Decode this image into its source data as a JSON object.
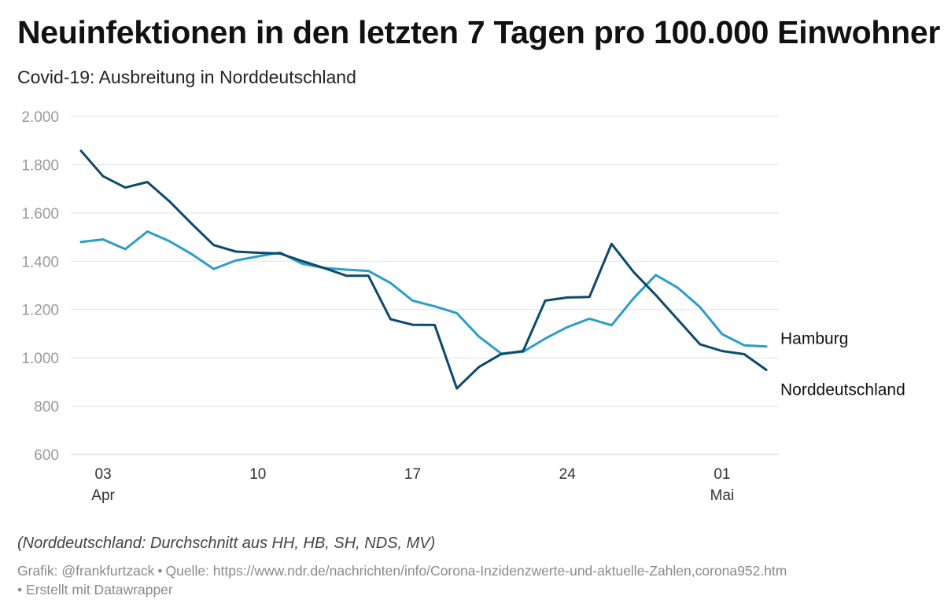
{
  "header": {
    "title": "Neuinfektionen in den letzten 7 Tagen pro 100.000 Einwohner",
    "subtitle": "Covid-19: Ausbreitung in Norddeutschland"
  },
  "footer": {
    "note": "(Norddeutschland: Durchschnitt aus HH, HB, SH, NDS, MV)",
    "credit": "Grafik: @frankfurtzack",
    "bullet": "•",
    "source": "Quelle: https://www.ndr.de/nachrichten/info/Corona-Inzidenzwerte-und-aktuelle-Zahlen,corona952.htm",
    "tool": "Erstellt mit Datawrapper"
  },
  "colors": {
    "hamburg": "#2b9ec9",
    "norddeutschland": "#0b4a6b",
    "grid": "#e2e2e2",
    "tick_label": "#9a9a9a"
  },
  "chart_data": {
    "type": "line",
    "x": [
      "2021-04-02",
      "2021-04-03",
      "2021-04-04",
      "2021-04-05",
      "2021-04-06",
      "2021-04-07",
      "2021-04-08",
      "2021-04-09",
      "2021-04-10",
      "2021-04-11",
      "2021-04-12",
      "2021-04-13",
      "2021-04-14",
      "2021-04-15",
      "2021-04-16",
      "2021-04-17",
      "2021-04-18",
      "2021-04-19",
      "2021-04-20",
      "2021-04-21",
      "2021-04-22",
      "2021-04-23",
      "2021-04-24",
      "2021-04-25",
      "2021-04-26",
      "2021-04-27",
      "2021-04-28",
      "2021-04-29",
      "2021-04-30",
      "2021-05-01",
      "2021-05-02",
      "2021-05-03"
    ],
    "series": [
      {
        "name": "Hamburg",
        "color": "#2b9ec9",
        "values": [
          1480,
          1490,
          1450,
          1523,
          1483,
          1430,
          1368,
          1403,
          1420,
          1436,
          1390,
          1372,
          1365,
          1360,
          1310,
          1237,
          1213,
          1185,
          1088,
          1018,
          1025,
          1080,
          1127,
          1162,
          1135,
          1247,
          1343,
          1290,
          1210,
          1098,
          1052,
          1047
        ]
      },
      {
        "name": "Norddeutschland",
        "color": "#0b4a6b",
        "values": [
          1857,
          1752,
          1705,
          1728,
          1648,
          1556,
          1467,
          1440,
          1435,
          1432,
          1401,
          1372,
          1340,
          1340,
          1160,
          1137,
          1136,
          873,
          962,
          1015,
          1028,
          1237,
          1250,
          1252,
          1472,
          1355,
          1260,
          1158,
          1056,
          1028,
          1015,
          950
        ]
      }
    ],
    "xticks": [
      {
        "value": "2021-04-03",
        "label": "03",
        "sublabel": "Apr"
      },
      {
        "value": "2021-04-10",
        "label": "10",
        "sublabel": ""
      },
      {
        "value": "2021-04-17",
        "label": "17",
        "sublabel": ""
      },
      {
        "value": "2021-04-24",
        "label": "24",
        "sublabel": ""
      },
      {
        "value": "2021-05-01",
        "label": "01",
        "sublabel": "Mai"
      }
    ],
    "yticks": [
      {
        "value": 600,
        "label": "600"
      },
      {
        "value": 800,
        "label": "800"
      },
      {
        "value": 1000,
        "label": "1.000"
      },
      {
        "value": 1200,
        "label": "1.200"
      },
      {
        "value": 1400,
        "label": "1.400"
      },
      {
        "value": 1600,
        "label": "1.600"
      },
      {
        "value": 1800,
        "label": "1.800"
      },
      {
        "value": 2000,
        "label": "2.000"
      }
    ],
    "ylim": [
      600,
      2000
    ],
    "grid": true,
    "legend": "direct labels at line ends"
  }
}
